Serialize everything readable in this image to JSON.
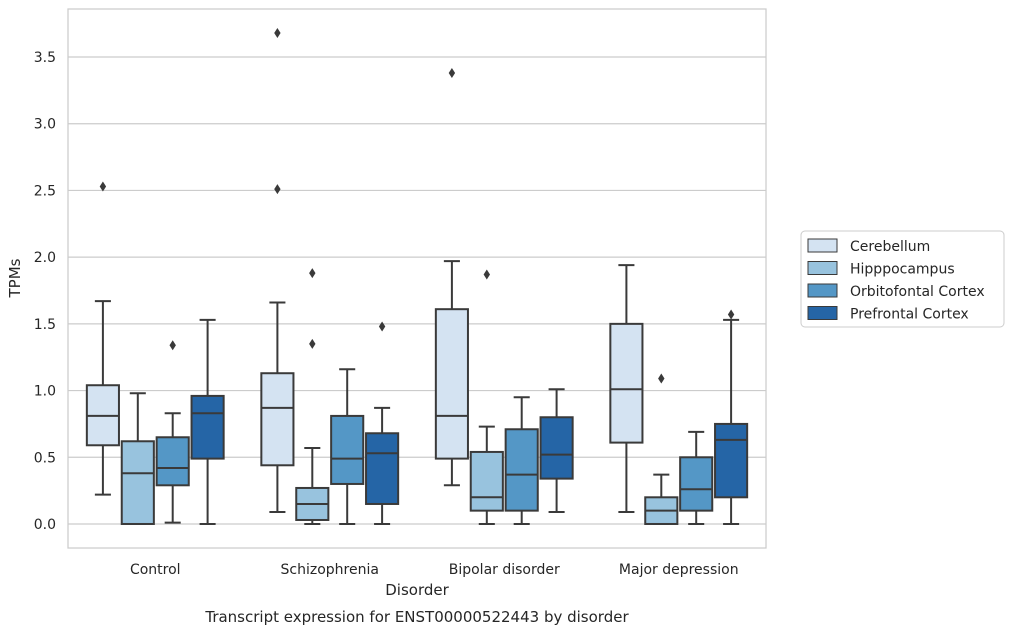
{
  "chart_data": {
    "type": "boxplot",
    "caption": "Transcript expression for ENST00000522443 by disorder",
    "xlabel": "Disorder",
    "ylabel": "TPMs",
    "ylim": [
      -0.18,
      3.86
    ],
    "yticks": [
      0.0,
      0.5,
      1.0,
      1.5,
      2.0,
      2.5,
      3.0,
      3.5
    ],
    "ytick_labels": [
      "0.0",
      "0.5",
      "1.0",
      "1.5",
      "2.0",
      "2.5",
      "3.0",
      "3.5"
    ],
    "grid": "horizontal",
    "legend_position": "right",
    "categories": [
      "Control",
      "Schizophrenia",
      "Bipolar disorder",
      "Major depression"
    ],
    "series": [
      {
        "name": "Cerebellum",
        "color": "#d4e3f2",
        "boxes": [
          {
            "whislo": 0.22,
            "q1": 0.59,
            "med": 0.81,
            "q3": 1.04,
            "whishi": 1.67,
            "fliers": [
              2.53
            ]
          },
          {
            "whislo": 0.09,
            "q1": 0.44,
            "med": 0.87,
            "q3": 1.13,
            "whishi": 1.66,
            "fliers": [
              2.51,
              3.68
            ]
          },
          {
            "whislo": 0.29,
            "q1": 0.49,
            "med": 0.81,
            "q3": 1.61,
            "whishi": 1.97,
            "fliers": [
              3.38
            ]
          },
          {
            "whislo": 0.09,
            "q1": 0.61,
            "med": 1.01,
            "q3": 1.5,
            "whishi": 1.94,
            "fliers": []
          }
        ]
      },
      {
        "name": "Hipppocampus",
        "color": "#98c3de",
        "boxes": [
          {
            "whislo": 0.0,
            "q1": 0.0,
            "med": 0.38,
            "q3": 0.62,
            "whishi": 0.98,
            "fliers": []
          },
          {
            "whislo": 0.0,
            "q1": 0.03,
            "med": 0.15,
            "q3": 0.27,
            "whishi": 0.57,
            "fliers": [
              1.35,
              1.88
            ]
          },
          {
            "whislo": 0.0,
            "q1": 0.1,
            "med": 0.2,
            "q3": 0.54,
            "whishi": 0.73,
            "fliers": [
              1.87
            ]
          },
          {
            "whislo": 0.0,
            "q1": 0.0,
            "med": 0.1,
            "q3": 0.2,
            "whishi": 0.37,
            "fliers": [
              1.09
            ]
          }
        ]
      },
      {
        "name": "Orbitofontal Cortex",
        "color": "#5497c6",
        "boxes": [
          {
            "whislo": 0.01,
            "q1": 0.29,
            "med": 0.42,
            "q3": 0.65,
            "whishi": 0.83,
            "fliers": [
              1.34
            ]
          },
          {
            "whislo": 0.0,
            "q1": 0.3,
            "med": 0.49,
            "q3": 0.81,
            "whishi": 1.16,
            "fliers": []
          },
          {
            "whislo": 0.0,
            "q1": 0.1,
            "med": 0.37,
            "q3": 0.71,
            "whishi": 0.95,
            "fliers": []
          },
          {
            "whislo": 0.0,
            "q1": 0.1,
            "med": 0.26,
            "q3": 0.5,
            "whishi": 0.69,
            "fliers": []
          }
        ]
      },
      {
        "name": "Prefrontal Cortex",
        "color": "#2565a6",
        "boxes": [
          {
            "whislo": 0.0,
            "q1": 0.49,
            "med": 0.83,
            "q3": 0.96,
            "whishi": 1.53,
            "fliers": []
          },
          {
            "whislo": 0.0,
            "q1": 0.15,
            "med": 0.53,
            "q3": 0.68,
            "whishi": 0.87,
            "fliers": [
              1.48
            ]
          },
          {
            "whislo": 0.09,
            "q1": 0.34,
            "med": 0.52,
            "q3": 0.8,
            "whishi": 1.01,
            "fliers": []
          },
          {
            "whislo": 0.0,
            "q1": 0.2,
            "med": 0.63,
            "q3": 0.75,
            "whishi": 1.53,
            "fliers": [
              1.57
            ]
          }
        ]
      }
    ]
  }
}
